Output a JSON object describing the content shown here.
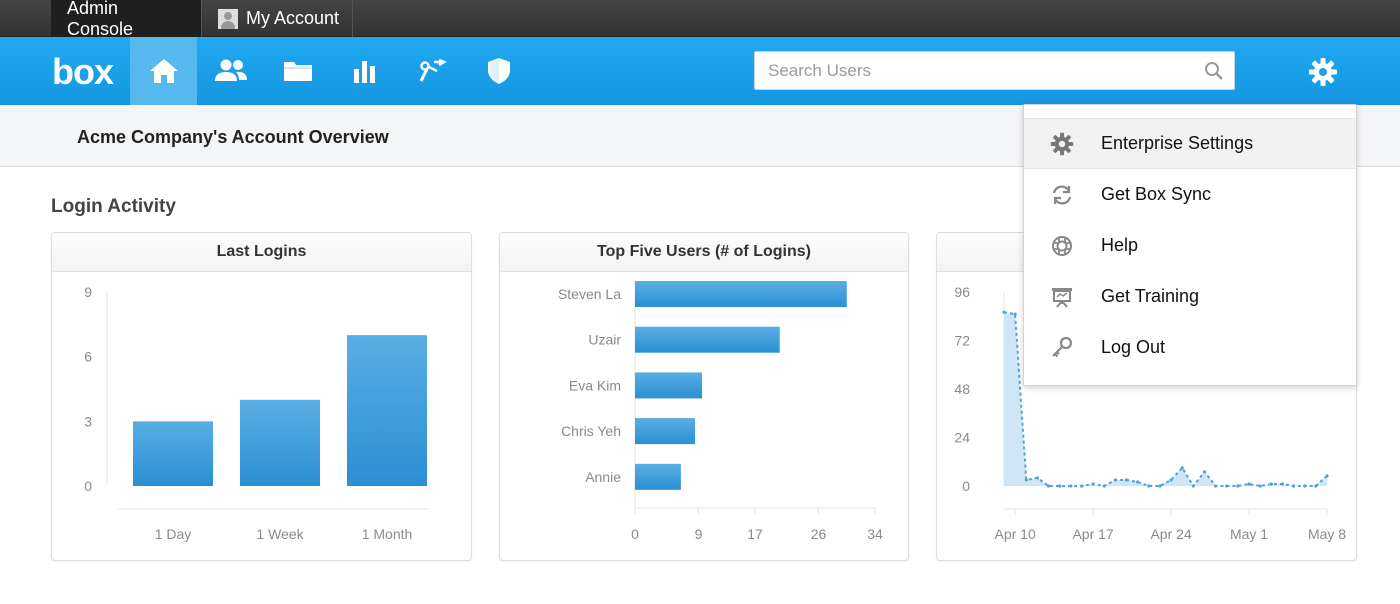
{
  "top_tabs": {
    "admin_console": "Admin Console",
    "my_account": "My Account"
  },
  "nav": {
    "logo": "box",
    "icons": [
      "home-icon",
      "users-icon",
      "folder-icon",
      "reports-icon",
      "apps-icon",
      "security-icon"
    ],
    "search_placeholder": "Search Users",
    "settings_icon": "gear-icon",
    "accent": "#1da1e8"
  },
  "page": {
    "title": "Acme Company's Account Overview",
    "section_title": "Login Activity"
  },
  "cards": {
    "last_logins": {
      "title": "Last Logins"
    },
    "top_users": {
      "title": "Top Five Users (# of Logins)"
    }
  },
  "chart_data": [
    {
      "type": "bar",
      "title": "Last Logins",
      "categories": [
        "1 Day",
        "1 Week",
        "1 Month"
      ],
      "values": [
        3,
        4,
        7
      ],
      "ylim": [
        0,
        9
      ],
      "yticks": [
        "0",
        "3",
        "6",
        "9"
      ],
      "color": "#2b93d6"
    },
    {
      "type": "bar",
      "orientation": "horizontal",
      "title": "Top Five Users (# of Logins)",
      "categories": [
        "Steven La",
        "Uzair",
        "Eva Kim",
        "Chris Yeh",
        "Annie"
      ],
      "values": [
        30,
        20.5,
        9.5,
        8.5,
        6.5
      ],
      "xlim": [
        0,
        34
      ],
      "xticks": [
        "0",
        "9",
        "17",
        "26",
        "34"
      ],
      "color": "#2b93d6"
    },
    {
      "type": "area",
      "x": [
        "Apr 9",
        "Apr 10",
        "Apr 11",
        "Apr 12",
        "Apr 13",
        "Apr 14",
        "Apr 15",
        "Apr 16",
        "Apr 17",
        "Apr 18",
        "Apr 19",
        "Apr 20",
        "Apr 21",
        "Apr 22",
        "Apr 23",
        "Apr 24",
        "Apr 25",
        "Apr 26",
        "Apr 27",
        "Apr 28",
        "Apr 29",
        "Apr 30",
        "May 1",
        "May 2",
        "May 3",
        "May 4",
        "May 5",
        "May 6",
        "May 7",
        "May 8"
      ],
      "values": [
        86,
        85,
        3,
        4,
        0,
        0,
        0,
        0,
        1,
        0,
        3,
        3,
        2,
        0,
        0,
        3,
        9,
        0,
        7,
        0,
        0,
        0,
        1,
        0,
        1,
        1,
        0,
        0,
        0,
        5
      ],
      "ylim": [
        0,
        96
      ],
      "yticks": [
        "0",
        "24",
        "48",
        "72",
        "96"
      ],
      "xticks": [
        "Apr 10",
        "Apr 17",
        "Apr 24",
        "May 1",
        "May 8"
      ],
      "color": "#4ea4db"
    }
  ],
  "dropdown": {
    "items": [
      {
        "label": "Enterprise Settings",
        "icon": "gear-icon"
      },
      {
        "label": "Get Box Sync",
        "icon": "sync-icon"
      },
      {
        "label": "Help",
        "icon": "help-icon"
      },
      {
        "label": "Get Training",
        "icon": "training-icon"
      },
      {
        "label": "Log Out",
        "icon": "key-icon"
      }
    ]
  }
}
